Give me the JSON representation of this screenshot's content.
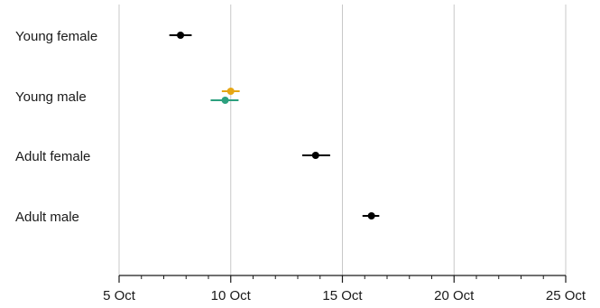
{
  "chart_data": {
    "type": "scatter",
    "subtype": "point-with-error-bars",
    "title": "",
    "xlabel": "",
    "ylabel": "",
    "x_axis": {
      "min": 5,
      "max": 25,
      "ticks": [
        5,
        10,
        15,
        20,
        25
      ],
      "tick_labels": [
        "5 Oct",
        "10 Oct",
        "15 Oct",
        "20 Oct",
        "25 Oct"
      ],
      "minor_ticks_per_major": 5
    },
    "grid": "vertical",
    "legend": "none",
    "categories": [
      "Young female",
      "Young male",
      "Adult female",
      "Adult male"
    ],
    "points": [
      {
        "category": "Young female",
        "x": 7.75,
        "low": 7.25,
        "high": 8.25,
        "color": "#000000"
      },
      {
        "category": "Young male",
        "x": 10.0,
        "low": 9.6,
        "high": 10.4,
        "color": "#E6A614"
      },
      {
        "category": "Young male",
        "x": 9.75,
        "low": 9.1,
        "high": 10.35,
        "color": "#2CA07E"
      },
      {
        "category": "Adult female",
        "x": 13.8,
        "low": 13.2,
        "high": 14.45,
        "color": "#000000"
      },
      {
        "category": "Adult male",
        "x": 16.3,
        "low": 15.9,
        "high": 16.65,
        "color": "#000000"
      }
    ]
  }
}
